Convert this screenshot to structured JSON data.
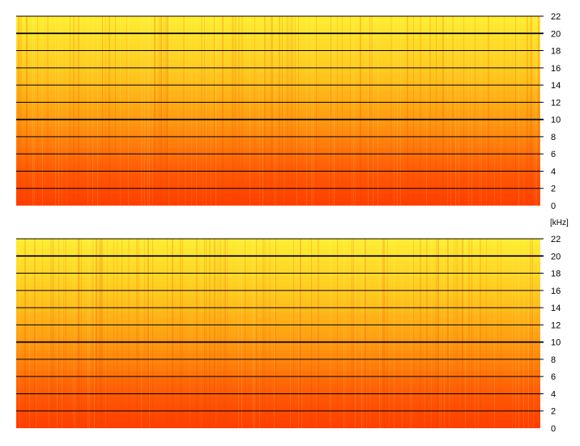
{
  "chart_data": [
    {
      "type": "heatmap",
      "channel": "top",
      "ylim": [
        0,
        22
      ],
      "y_ticks": [
        0,
        2,
        4,
        6,
        8,
        10,
        12,
        14,
        16,
        18,
        20,
        22
      ],
      "major_ticks": [
        10,
        20
      ],
      "grid": true,
      "colors": {
        "low_freq": "#ff4a00",
        "mid_freq": "#ff9a10",
        "high_freq": "#ffee33"
      }
    },
    {
      "type": "heatmap",
      "channel": "bottom",
      "ylim": [
        0,
        22
      ],
      "y_ticks": [
        0,
        2,
        4,
        6,
        8,
        10,
        12,
        14,
        16,
        18,
        20,
        22
      ],
      "major_ticks": [
        10,
        20
      ],
      "grid": true,
      "colors": {
        "low_freq": "#ff4a00",
        "mid_freq": "#ff9a10",
        "high_freq": "#ffee33"
      }
    }
  ],
  "axis": {
    "unit_label": "[kHz]"
  }
}
